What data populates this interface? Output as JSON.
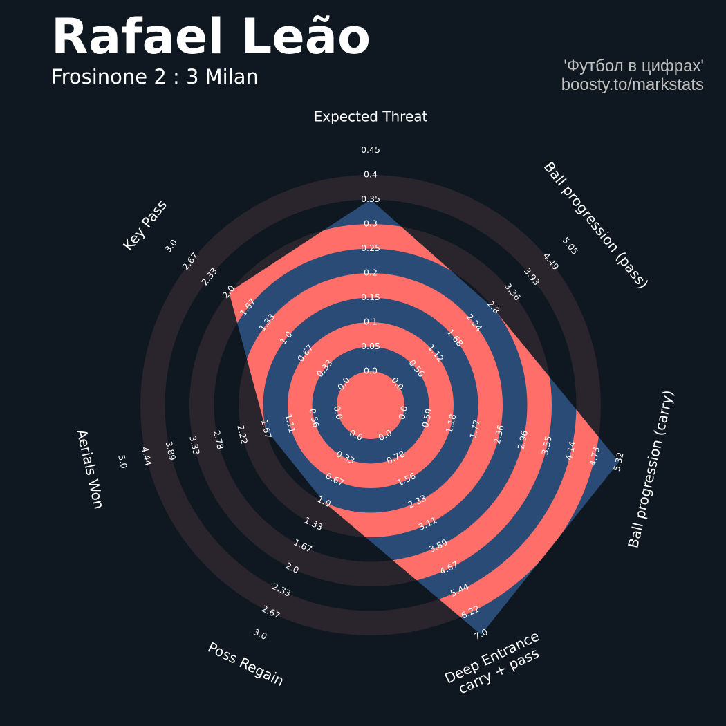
{
  "header": {
    "player_name": "Rafael Leão",
    "match": "Frosinone 2 : 3 Milan",
    "credit_line_1": "'Футбол в цифрах'",
    "credit_line_2": "boosty.to/markstats"
  },
  "colors": {
    "background": "#0f1820",
    "outer_ring": "#2a252c",
    "inner_ring": "#ff6e69",
    "polygon": "#294b75",
    "text": "#ffffff"
  },
  "chart_data": {
    "type": "radar",
    "title": "",
    "params": [
      {
        "label": "Expected Threat",
        "ticks": [
          "0.0",
          "0.05",
          "0.1",
          "0.15",
          "0.2",
          "0.25",
          "0.3",
          "0.35",
          "0.4",
          "0.45"
        ],
        "min": 0,
        "max": 0.45,
        "value": 0.35
      },
      {
        "label": "Ball progression (pass)",
        "ticks": [
          "0.0",
          "0.56",
          "1.12",
          "1.68",
          "2.24",
          "2.8",
          "3.36",
          "3.93",
          "4.49",
          "5.05"
        ],
        "min": 0,
        "max": 5.05,
        "value": 2.8
      },
      {
        "label": "Ball progression (carry)",
        "ticks": [
          "0.0",
          "0.59",
          "1.18",
          "1.77",
          "2.36",
          "2.96",
          "3.55",
          "4.14",
          "4.73",
          "5.32"
        ],
        "min": 0,
        "max": 5.32,
        "value": 5.32
      },
      {
        "label": "Deep Entrance\ncarry + pass",
        "ticks": [
          "0.0",
          "0.78",
          "1.56",
          "2.33",
          "3.11",
          "3.89",
          "4.67",
          "5.44",
          "6.22",
          "7.0"
        ],
        "min": 0,
        "max": 7.0,
        "value": 7.0
      },
      {
        "label": "Poss Regain",
        "ticks": [
          "0.0",
          "0.33",
          "0.67",
          "1.0",
          "1.33",
          "1.67",
          "2.0",
          "2.33",
          "2.67",
          "3.0"
        ],
        "min": 0,
        "max": 3.0,
        "value": 1.0
      },
      {
        "label": "Aerials Won",
        "ticks": [
          "0.0",
          "0.56",
          "1.11",
          "1.67",
          "2.22",
          "2.78",
          "3.33",
          "3.89",
          "4.44",
          "5.0"
        ],
        "min": 0,
        "max": 5.0,
        "value": 1.67
      },
      {
        "label": "Key Pass",
        "ticks": [
          "0.0",
          "0.33",
          "0.67",
          "1.0",
          "1.33",
          "1.67",
          "2.0",
          "2.33",
          "2.67",
          "3.0"
        ],
        "min": 0,
        "max": 3.0,
        "value": 2.0
      }
    ]
  }
}
